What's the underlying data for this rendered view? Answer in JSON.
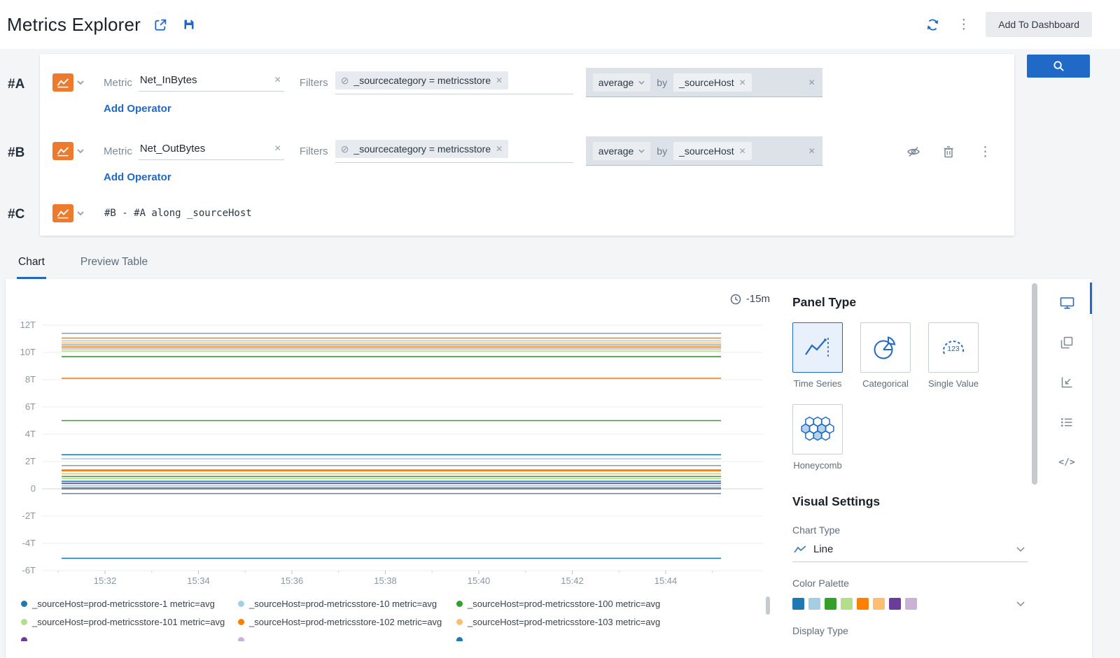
{
  "header": {
    "title": "Metrics Explorer",
    "add_to_dashboard_label": "Add To Dashboard"
  },
  "icons": {
    "kebab": "⋮",
    "close": "✕",
    "exclude": "⊘",
    "code": "</>"
  },
  "query_builder": {
    "metric_label": "Metric",
    "filters_label": "Filters",
    "add_operator_label": "Add Operator",
    "rows": [
      {
        "id": "#A",
        "metric": "Net_InBytes",
        "filter": "_sourcecategory = metricsstore",
        "operator": "average",
        "by_label": "by",
        "group_by": "_sourceHost"
      },
      {
        "id": "#B",
        "metric": "Net_OutBytes",
        "filter": "_sourcecategory = metricsstore",
        "operator": "average",
        "by_label": "by",
        "group_by": "_sourceHost"
      },
      {
        "id": "#C",
        "expression": "#B - #A along _sourceHost"
      }
    ]
  },
  "tabs": [
    {
      "label": "Chart",
      "active": true
    },
    {
      "label": "Preview Table",
      "active": false
    }
  ],
  "chart": {
    "time_range": "-15m"
  },
  "chart_data": {
    "type": "line",
    "title": "",
    "x_range": [
      "15:31",
      "15:45"
    ],
    "x_ticks": [
      "15:32",
      "15:34",
      "15:36",
      "15:38",
      "15:40",
      "15:42",
      "15:44"
    ],
    "y_ticks": [
      {
        "label": "12T",
        "value": 12
      },
      {
        "label": "10T",
        "value": 10
      },
      {
        "label": "8T",
        "value": 8
      },
      {
        "label": "6T",
        "value": 6
      },
      {
        "label": "4T",
        "value": 4
      },
      {
        "label": "2T",
        "value": 2
      },
      {
        "label": "0",
        "value": 0
      },
      {
        "label": "-2T",
        "value": -2
      },
      {
        "label": "-4T",
        "value": -4
      },
      {
        "label": "-6T",
        "value": -6
      }
    ],
    "ylim": [
      -7,
      12.8
    ],
    "grid": true,
    "series_shape": "constant-horizontal-lines",
    "series": [
      {
        "color": "#8fa3b0",
        "value": 11.4
      },
      {
        "color": "#ff7f00",
        "value": 11.05
      },
      {
        "color": "#a6cee3",
        "value": 10.85
      },
      {
        "color": "#fdbf6f",
        "value": 10.7
      },
      {
        "color": "#8fa3b0",
        "value": 10.55
      },
      {
        "color": "#ff7f00",
        "value": 10.4
      },
      {
        "color": "#cab2d6",
        "value": 10.25
      },
      {
        "color": "#b2df8a",
        "value": 10.1
      },
      {
        "color": "#33a02c",
        "value": 9.7
      },
      {
        "color": "#ff7f00",
        "value": 8.1
      },
      {
        "color": "#33a02c",
        "value": 5.0
      },
      {
        "color": "#1f78b4",
        "value": 2.5
      },
      {
        "color": "#a6cee3",
        "value": 2.2
      },
      {
        "color": "#8fa3b0",
        "value": 1.7
      },
      {
        "color": "#ff7f00",
        "value": 1.35,
        "w": 3
      },
      {
        "color": "#fdbf6f",
        "value": 1.1
      },
      {
        "color": "#33a02c",
        "value": 0.9
      },
      {
        "color": "#b2df8a",
        "value": 0.75
      },
      {
        "color": "#1f78b4",
        "value": 0.55
      },
      {
        "color": "#6a3d9a",
        "value": 0.4
      },
      {
        "color": "#a6cee3",
        "value": 0.25
      },
      {
        "color": "#8fa3b0",
        "value": 0.1
      },
      {
        "color": "#455a64",
        "value": 0.0
      },
      {
        "color": "#78909c",
        "value": -0.35
      },
      {
        "color": "#1f78b4",
        "value": -5.1
      }
    ],
    "legend": [
      {
        "color": "#1f78b4",
        "label": "_sourceHost=prod-metricsstore-1 metric=avg"
      },
      {
        "color": "#a6cee3",
        "label": "_sourceHost=prod-metricsstore-10 metric=avg"
      },
      {
        "color": "#33a02c",
        "label": "_sourceHost=prod-metricsstore-100 metric=avg"
      },
      {
        "color": "#b2df8a",
        "label": "_sourceHost=prod-metricsstore-101 metric=avg"
      },
      {
        "color": "#ff7f00",
        "label": "_sourceHost=prod-metricsstore-102 metric=avg"
      },
      {
        "color": "#fdbf6f",
        "label": "_sourceHost=prod-metricsstore-103 metric=avg"
      }
    ],
    "legend_overflow": [
      {
        "color": "#6a3d9a",
        "label": ""
      },
      {
        "color": "#cab2d6",
        "label": ""
      },
      {
        "color": "#1f78b4",
        "label": ""
      }
    ]
  },
  "settings": {
    "panel_type_title": "Panel Type",
    "panel_types": [
      {
        "label": "Time Series",
        "selected": true
      },
      {
        "label": "Categorical",
        "selected": false
      },
      {
        "label": "Single Value",
        "selected": false,
        "icon_text": "123"
      },
      {
        "label": "Honeycomb",
        "selected": false
      }
    ],
    "visual_settings_title": "Visual Settings",
    "chart_type_label": "Chart Type",
    "chart_type_value": "Line",
    "color_palette_label": "Color Palette",
    "color_palette": [
      "#1f78b4",
      "#a6cee3",
      "#33a02c",
      "#b2df8a",
      "#ff7f00",
      "#fdbf6f",
      "#6a3d9a",
      "#cab2d6"
    ],
    "display_type_label": "Display Type"
  }
}
